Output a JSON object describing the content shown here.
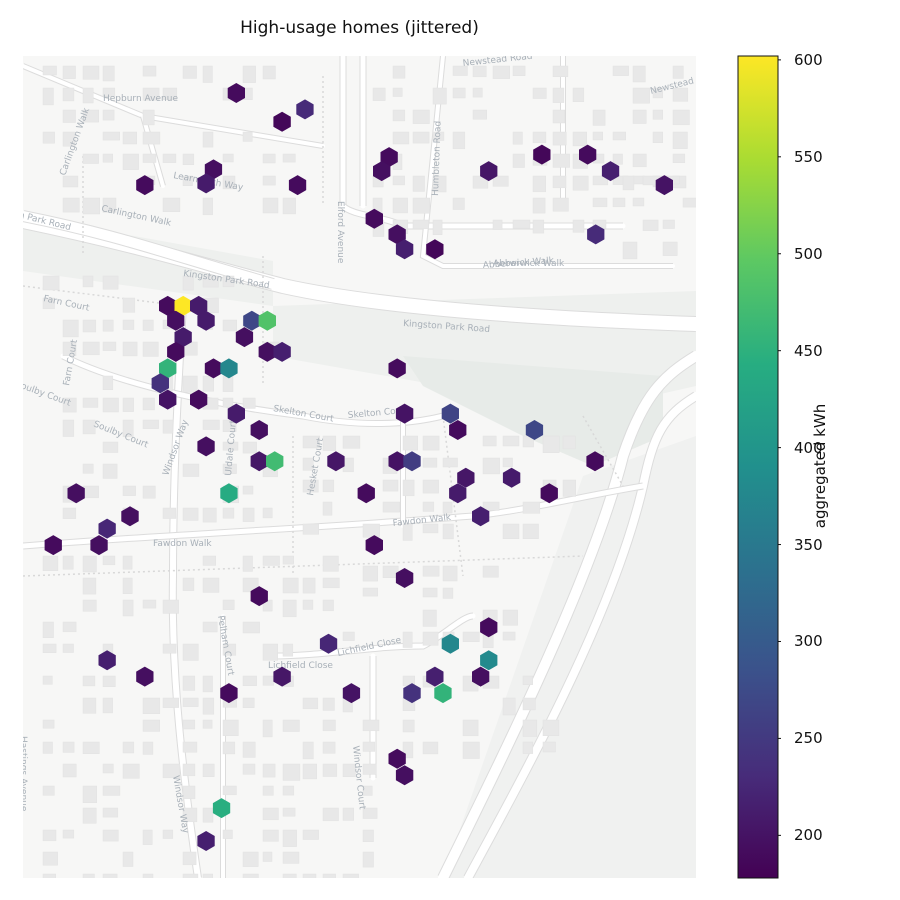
{
  "title": "High-usage homes (jittered)",
  "colorbar": {
    "label": "aggregated kWh",
    "min": 178,
    "max": 602,
    "ticks": [
      {
        "value": 600,
        "label": "600"
      },
      {
        "value": 550,
        "label": "550"
      },
      {
        "value": 500,
        "label": "500"
      },
      {
        "value": 450,
        "label": "450"
      },
      {
        "value": 400,
        "label": "400"
      },
      {
        "value": 350,
        "label": "350"
      },
      {
        "value": 300,
        "label": "300"
      },
      {
        "value": 250,
        "label": "250"
      },
      {
        "value": 200,
        "label": "200"
      }
    ],
    "colormap": "viridis"
  },
  "streets": [
    {
      "name": "Newstead Road"
    },
    {
      "name": "Newstead Road"
    },
    {
      "name": "Hepburn Avenue"
    },
    {
      "name": "Carlington Walk"
    },
    {
      "name": "Elford Avenue"
    },
    {
      "name": "Humbleton Road"
    },
    {
      "name": "Learmouth Way"
    },
    {
      "name": "Carlington Walk"
    },
    {
      "name": "on Park Road"
    },
    {
      "name": "Abberwick Walk"
    },
    {
      "name": "Abberwick Walk"
    },
    {
      "name": "Kingston Park Road"
    },
    {
      "name": "Kingston Park Road"
    },
    {
      "name": "Farn Court"
    },
    {
      "name": "Farn Court"
    },
    {
      "name": "Soulby Court"
    },
    {
      "name": "Soulby Court"
    },
    {
      "name": "Skelton Court"
    },
    {
      "name": "Skelton Court"
    },
    {
      "name": "Windsor Way"
    },
    {
      "name": "Uldale Court"
    },
    {
      "name": "Hesket Court"
    },
    {
      "name": "Fawdon Walk"
    },
    {
      "name": "Fawdon Walk"
    },
    {
      "name": "Pelham Court"
    },
    {
      "name": "Lichfield Close"
    },
    {
      "name": "Lichfield Close"
    },
    {
      "name": "Windsor Court"
    },
    {
      "name": "Windsor Way"
    },
    {
      "name": "Hastings Avenue"
    }
  ],
  "chart_data": {
    "type": "hexbin",
    "value_label": "aggregated kWh",
    "vmin": 178,
    "vmax": 602,
    "bins": [
      {
        "lon": 0.317,
        "lat": 0.955,
        "kwh": 190
      },
      {
        "lon": 0.419,
        "lat": 0.935,
        "kwh": 230
      },
      {
        "lon": 0.385,
        "lat": 0.92,
        "kwh": 185
      },
      {
        "lon": 0.283,
        "lat": 0.862,
        "kwh": 195
      },
      {
        "lon": 0.272,
        "lat": 0.845,
        "kwh": 210
      },
      {
        "lon": 0.181,
        "lat": 0.843,
        "kwh": 190
      },
      {
        "lon": 0.408,
        "lat": 0.843,
        "kwh": 190
      },
      {
        "lon": 0.544,
        "lat": 0.877,
        "kwh": 190
      },
      {
        "lon": 0.533,
        "lat": 0.86,
        "kwh": 195
      },
      {
        "lon": 0.692,
        "lat": 0.86,
        "kwh": 205
      },
      {
        "lon": 0.771,
        "lat": 0.88,
        "kwh": 185
      },
      {
        "lon": 0.839,
        "lat": 0.88,
        "kwh": 190
      },
      {
        "lon": 0.873,
        "lat": 0.86,
        "kwh": 215
      },
      {
        "lon": 0.953,
        "lat": 0.843,
        "kwh": 200
      },
      {
        "lon": 0.522,
        "lat": 0.802,
        "kwh": 190
      },
      {
        "lon": 0.556,
        "lat": 0.783,
        "kwh": 195
      },
      {
        "lon": 0.567,
        "lat": 0.765,
        "kwh": 215
      },
      {
        "lon": 0.612,
        "lat": 0.765,
        "kwh": 185
      },
      {
        "lon": 0.851,
        "lat": 0.783,
        "kwh": 230
      },
      {
        "lon": 0.215,
        "lat": 0.696,
        "kwh": 190
      },
      {
        "lon": 0.238,
        "lat": 0.696,
        "kwh": 602
      },
      {
        "lon": 0.261,
        "lat": 0.696,
        "kwh": 210
      },
      {
        "lon": 0.227,
        "lat": 0.678,
        "kwh": 195
      },
      {
        "lon": 0.272,
        "lat": 0.678,
        "kwh": 210
      },
      {
        "lon": 0.34,
        "lat": 0.678,
        "kwh": 270
      },
      {
        "lon": 0.363,
        "lat": 0.678,
        "kwh": 485
      },
      {
        "lon": 0.238,
        "lat": 0.658,
        "kwh": 210
      },
      {
        "lon": 0.329,
        "lat": 0.658,
        "kwh": 195
      },
      {
        "lon": 0.227,
        "lat": 0.64,
        "kwh": 190
      },
      {
        "lon": 0.363,
        "lat": 0.64,
        "kwh": 195
      },
      {
        "lon": 0.385,
        "lat": 0.64,
        "kwh": 215
      },
      {
        "lon": 0.215,
        "lat": 0.62,
        "kwh": 455
      },
      {
        "lon": 0.283,
        "lat": 0.62,
        "kwh": 190
      },
      {
        "lon": 0.306,
        "lat": 0.62,
        "kwh": 375
      },
      {
        "lon": 0.556,
        "lat": 0.62,
        "kwh": 190
      },
      {
        "lon": 0.204,
        "lat": 0.602,
        "kwh": 240
      },
      {
        "lon": 0.215,
        "lat": 0.582,
        "kwh": 200
      },
      {
        "lon": 0.261,
        "lat": 0.582,
        "kwh": 190
      },
      {
        "lon": 0.317,
        "lat": 0.565,
        "kwh": 210
      },
      {
        "lon": 0.567,
        "lat": 0.565,
        "kwh": 200
      },
      {
        "lon": 0.635,
        "lat": 0.565,
        "kwh": 265
      },
      {
        "lon": 0.646,
        "lat": 0.545,
        "kwh": 190
      },
      {
        "lon": 0.76,
        "lat": 0.545,
        "kwh": 270
      },
      {
        "lon": 0.272,
        "lat": 0.525,
        "kwh": 195
      },
      {
        "lon": 0.351,
        "lat": 0.545,
        "kwh": 195
      },
      {
        "lon": 0.351,
        "lat": 0.507,
        "kwh": 205
      },
      {
        "lon": 0.374,
        "lat": 0.507,
        "kwh": 470
      },
      {
        "lon": 0.465,
        "lat": 0.507,
        "kwh": 205
      },
      {
        "lon": 0.556,
        "lat": 0.507,
        "kwh": 200
      },
      {
        "lon": 0.578,
        "lat": 0.507,
        "kwh": 255
      },
      {
        "lon": 0.85,
        "lat": 0.507,
        "kwh": 190
      },
      {
        "lon": 0.658,
        "lat": 0.487,
        "kwh": 205
      },
      {
        "lon": 0.726,
        "lat": 0.487,
        "kwh": 210
      },
      {
        "lon": 0.306,
        "lat": 0.468,
        "kwh": 440
      },
      {
        "lon": 0.51,
        "lat": 0.468,
        "kwh": 190
      },
      {
        "lon": 0.646,
        "lat": 0.468,
        "kwh": 210
      },
      {
        "lon": 0.782,
        "lat": 0.468,
        "kwh": 190
      },
      {
        "lon": 0.079,
        "lat": 0.468,
        "kwh": 195
      },
      {
        "lon": 0.159,
        "lat": 0.44,
        "kwh": 195
      },
      {
        "lon": 0.125,
        "lat": 0.425,
        "kwh": 225
      },
      {
        "lon": 0.68,
        "lat": 0.44,
        "kwh": 215
      },
      {
        "lon": 0.045,
        "lat": 0.405,
        "kwh": 190
      },
      {
        "lon": 0.113,
        "lat": 0.405,
        "kwh": 195
      },
      {
        "lon": 0.522,
        "lat": 0.405,
        "kwh": 190
      },
      {
        "lon": 0.567,
        "lat": 0.365,
        "kwh": 195
      },
      {
        "lon": 0.351,
        "lat": 0.343,
        "kwh": 190
      },
      {
        "lon": 0.692,
        "lat": 0.305,
        "kwh": 190
      },
      {
        "lon": 0.635,
        "lat": 0.285,
        "kwh": 375
      },
      {
        "lon": 0.454,
        "lat": 0.285,
        "kwh": 225
      },
      {
        "lon": 0.692,
        "lat": 0.265,
        "kwh": 380
      },
      {
        "lon": 0.125,
        "lat": 0.265,
        "kwh": 215
      },
      {
        "lon": 0.181,
        "lat": 0.245,
        "kwh": 195
      },
      {
        "lon": 0.385,
        "lat": 0.245,
        "kwh": 205
      },
      {
        "lon": 0.612,
        "lat": 0.245,
        "kwh": 215
      },
      {
        "lon": 0.68,
        "lat": 0.245,
        "kwh": 195
      },
      {
        "lon": 0.306,
        "lat": 0.225,
        "kwh": 190
      },
      {
        "lon": 0.488,
        "lat": 0.225,
        "kwh": 200
      },
      {
        "lon": 0.578,
        "lat": 0.225,
        "kwh": 240
      },
      {
        "lon": 0.624,
        "lat": 0.225,
        "kwh": 455
      },
      {
        "lon": 0.556,
        "lat": 0.145,
        "kwh": 190
      },
      {
        "lon": 0.567,
        "lat": 0.125,
        "kwh": 195
      },
      {
        "lon": 0.295,
        "lat": 0.085,
        "kwh": 445
      },
      {
        "lon": 0.272,
        "lat": 0.045,
        "kwh": 215
      }
    ]
  }
}
